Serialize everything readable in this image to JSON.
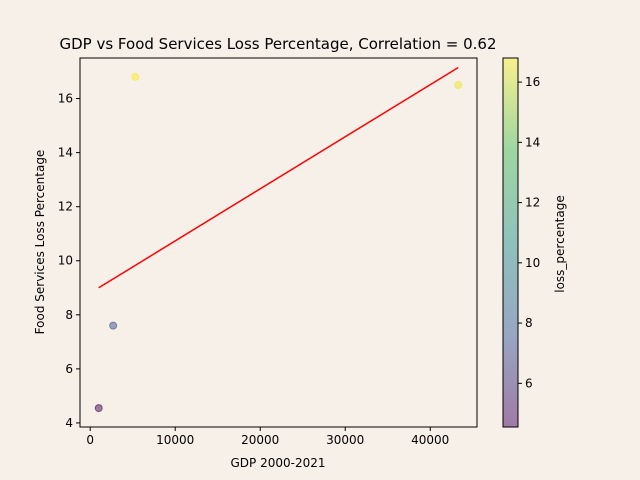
{
  "chart_data": {
    "type": "scatter",
    "title": "GDP vs Food Services Loss Percentage, Correlation = 0.62",
    "xlabel": "GDP 2000-2021",
    "ylabel": "Food Services Loss Percentage",
    "xlim": [
      -1200,
      45500
    ],
    "ylim": [
      3.85,
      17.5
    ],
    "xticks": [
      0,
      10000,
      20000,
      30000,
      40000
    ],
    "yticks": [
      4,
      6,
      8,
      10,
      12,
      14,
      16
    ],
    "grid": false,
    "points": [
      {
        "x": 1000,
        "y": 4.55
      },
      {
        "x": 2700,
        "y": 7.6
      },
      {
        "x": 5300,
        "y": 16.8
      },
      {
        "x": 43300,
        "y": 16.5
      }
    ],
    "trendline": {
      "x": [
        1000,
        43300
      ],
      "y": [
        9.0,
        17.15
      ],
      "color": "#ff0000"
    },
    "colorbar": {
      "label": "loss_percentage",
      "range": [
        4.55,
        16.8
      ],
      "ticks": [
        6,
        8,
        10,
        12,
        14,
        16
      ],
      "colormap": "viridis",
      "alpha": 0.5
    },
    "background": "#f7f0e9"
  }
}
